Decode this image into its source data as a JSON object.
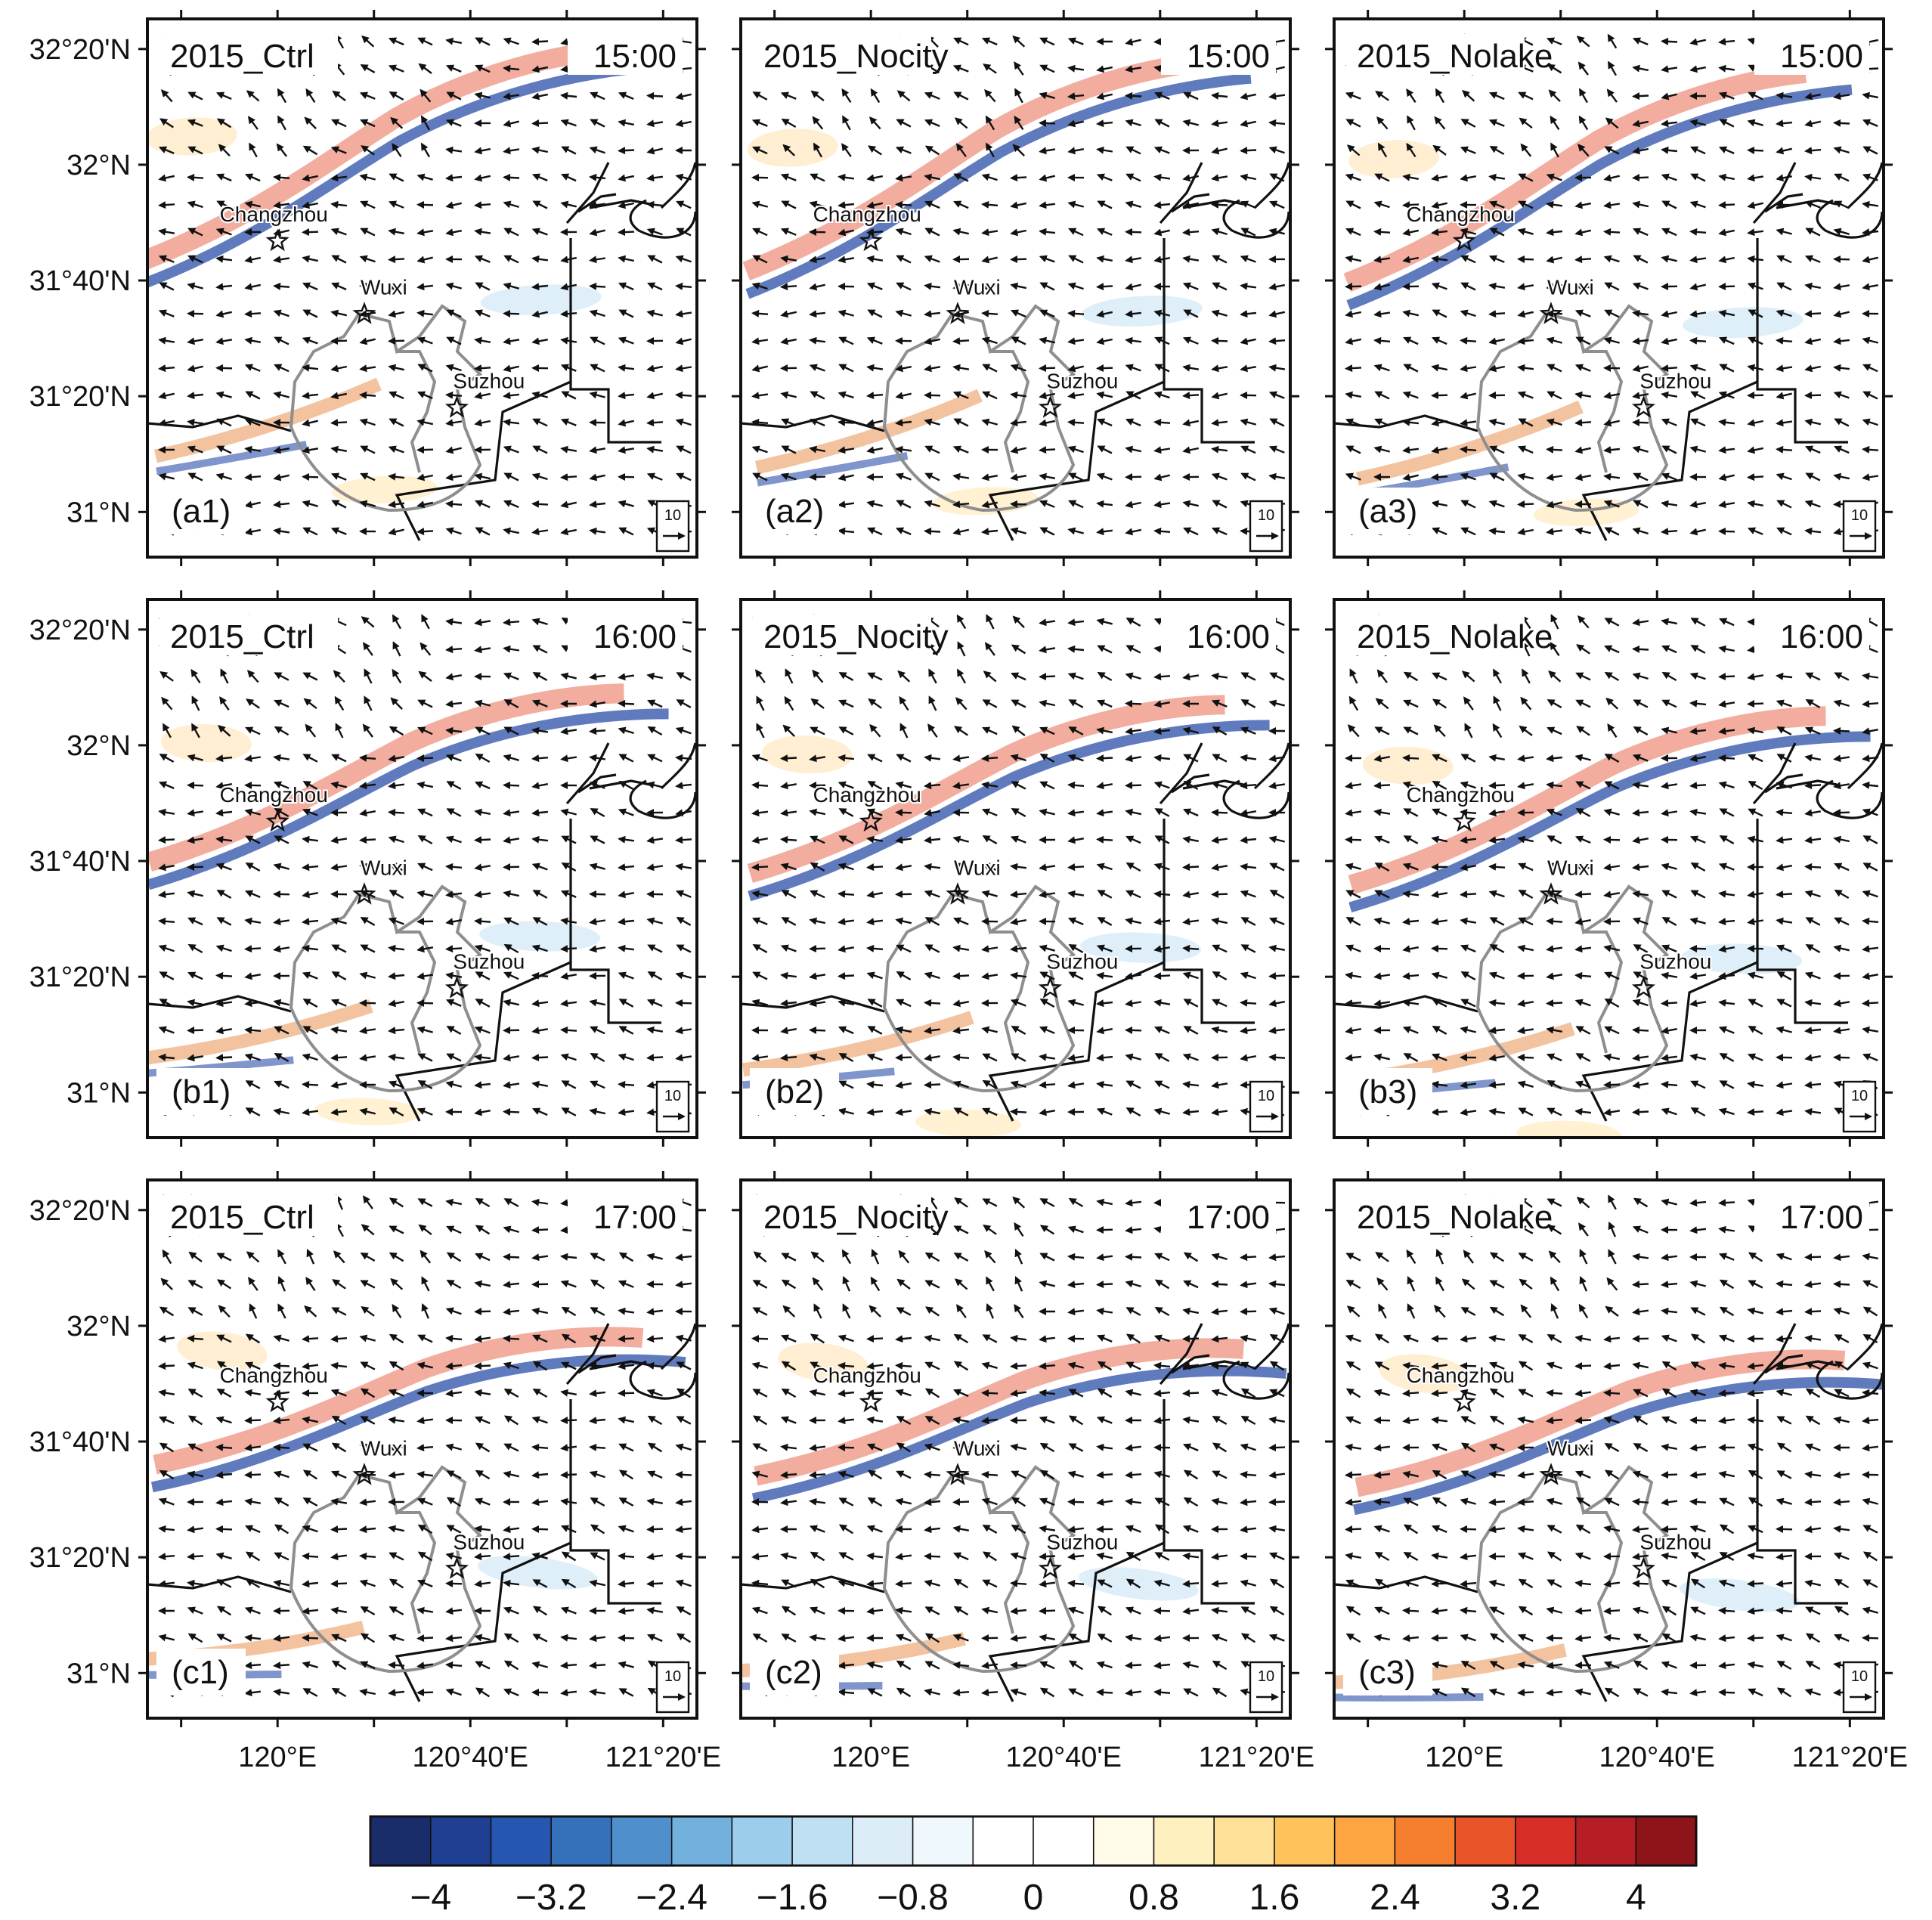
{
  "panels": [
    {
      "id": "a1",
      "label": "(a1)",
      "experiment": "2015_Ctrl",
      "time": "15:00"
    },
    {
      "id": "a2",
      "label": "(a2)",
      "experiment": "2015_Nocity",
      "time": "15:00"
    },
    {
      "id": "a3",
      "label": "(a3)",
      "experiment": "2015_Nolake",
      "time": "15:00"
    },
    {
      "id": "b1",
      "label": "(b1)",
      "experiment": "2015_Ctrl",
      "time": "16:00"
    },
    {
      "id": "b2",
      "label": "(b2)",
      "experiment": "2015_Nocity",
      "time": "16:00"
    },
    {
      "id": "b3",
      "label": "(b3)",
      "experiment": "2015_Nolake",
      "time": "16:00"
    },
    {
      "id": "c1",
      "label": "(c1)",
      "experiment": "2015_Ctrl",
      "time": "17:00"
    },
    {
      "id": "c2",
      "label": "(c2)",
      "experiment": "2015_Nocity",
      "time": "17:00"
    },
    {
      "id": "c3",
      "label": "(c3)",
      "experiment": "2015_Nolake",
      "time": "17:00"
    }
  ],
  "lat_ticks": [
    "32°20'N",
    "32°N",
    "31°40'N",
    "31°20'N",
    "31°N"
  ],
  "lon_ticks": [
    "120°E",
    "120°40'E",
    "121°20'E"
  ],
  "cities": [
    {
      "name": "Changzhou",
      "lon": 120.0,
      "lat": 31.78
    },
    {
      "name": "Wuxi",
      "lon": 120.3,
      "lat": 31.57
    },
    {
      "name": "Suzhou",
      "lon": 120.62,
      "lat": 31.3
    }
  ],
  "reference_vector": {
    "label": "10"
  },
  "colorbar": {
    "min": -4.4,
    "max": 4.4,
    "tick_labels": [
      "−4",
      "−3.2",
      "−2.4",
      "−1.6",
      "−0.8",
      "0",
      "0.8",
      "1.6",
      "2.4",
      "3.2",
      "4"
    ],
    "colors": [
      "#1a2d6b",
      "#203f92",
      "#2656b0",
      "#3570bb",
      "#4f8fcb",
      "#72b0dd",
      "#9ccdec",
      "#bfe0f3",
      "#dcedf8",
      "#eff8fc",
      "#ffffff",
      "#ffffff",
      "#fffbe8",
      "#fff0c0",
      "#ffe098",
      "#ffc35c",
      "#fda543",
      "#f67f2f",
      "#e95529",
      "#d62e26",
      "#b51e25",
      "#8d1419"
    ],
    "color_semantics": [
      "dark-blue",
      "blue",
      "light-blue",
      "white",
      "yellow",
      "orange",
      "red",
      "dark-red"
    ]
  }
}
